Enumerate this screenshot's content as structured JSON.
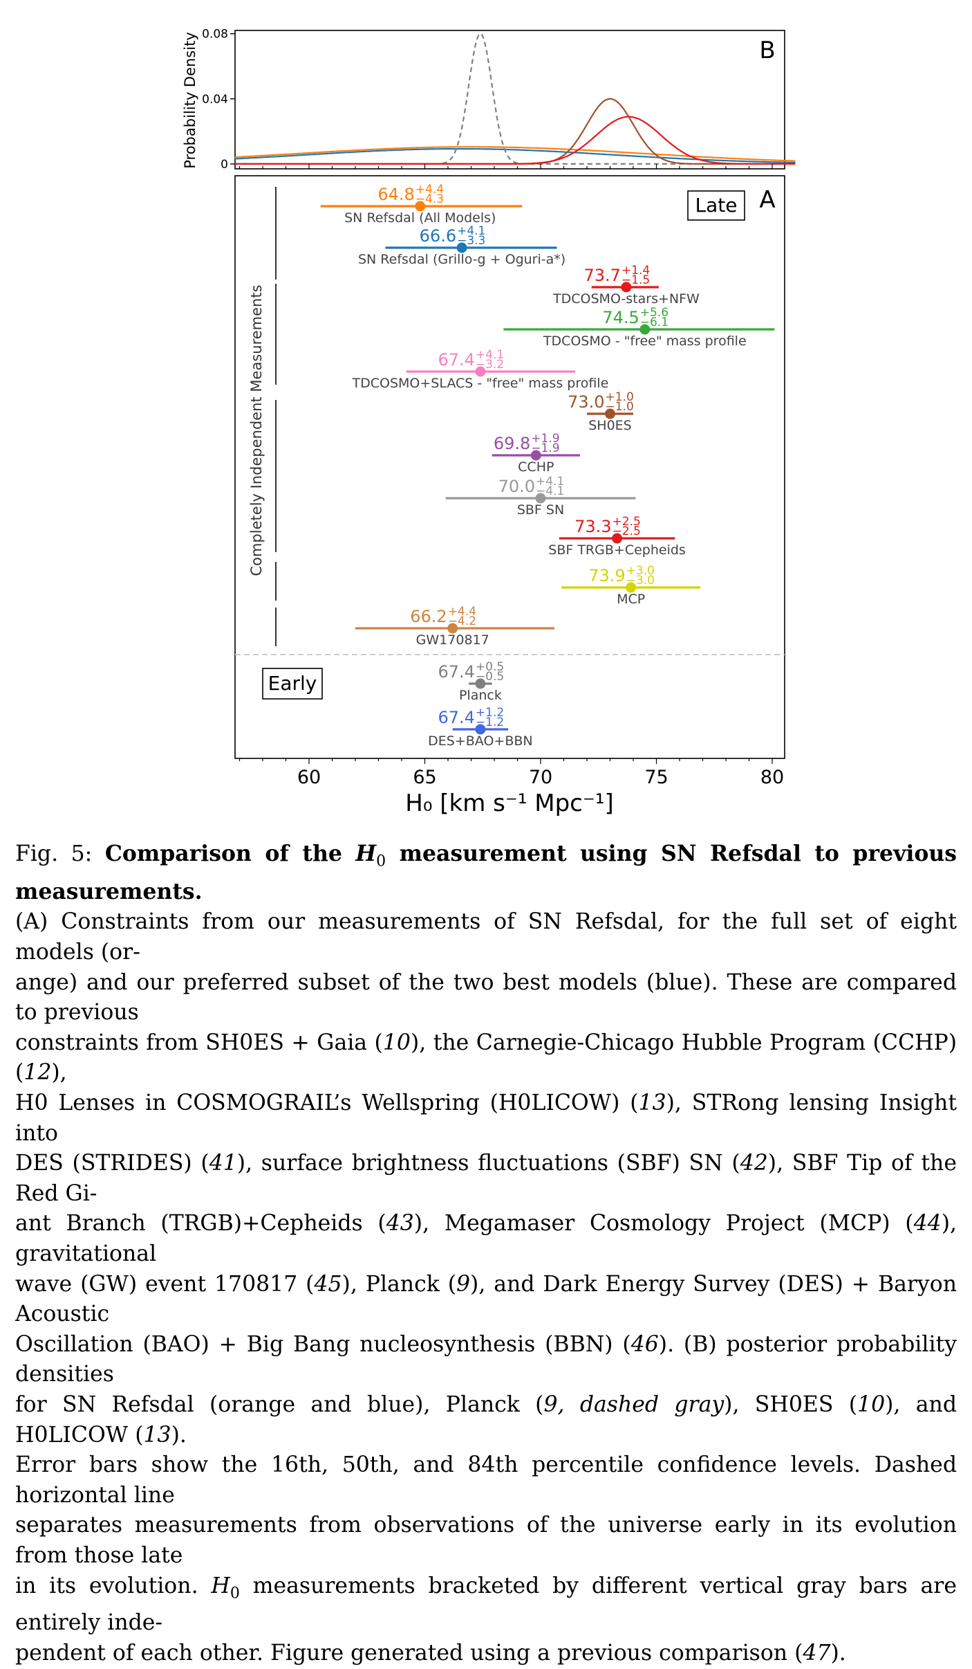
{
  "chart_data": [
    {
      "panel": "B",
      "type": "line",
      "panel_label": "B",
      "ylabel": "Probability Density",
      "yticks": [
        {
          "v": 0,
          "label": "0"
        },
        {
          "v": 0.04,
          "label": "0.04"
        },
        {
          "v": 0.08,
          "label": "0.08"
        }
      ],
      "ylim": [
        -0.003,
        0.082
      ],
      "xlim": [
        56.8,
        81.0
      ],
      "grid": false,
      "series": [
        {
          "color": "#1f77b4",
          "dashed": false,
          "mu": 66.5,
          "sigma": 6.6,
          "amp": 0.0093
        },
        {
          "color": "#ff7f0e",
          "dashed": false,
          "mu": 67.0,
          "sigma": 7.5,
          "amp": 0.0105
        },
        {
          "color": "#808080",
          "dashed": true,
          "mu": 67.4,
          "sigma": 0.5,
          "amp": 0.08
        },
        {
          "color": "#a0522d",
          "dashed": false,
          "mu": 73.0,
          "sigma": 1.0,
          "amp": 0.04
        },
        {
          "color": "#e41a1c",
          "dashed": false,
          "mu": 73.8,
          "sigma": 1.4,
          "amp": 0.029
        }
      ]
    },
    {
      "panel": "A",
      "type": "errorbar",
      "panel_label": "A",
      "xlabel": "H₀ [km s⁻¹ Mpc⁻¹]",
      "ylabel": "Completely Independent Measurements",
      "xlim": [
        56.8,
        81.0
      ],
      "xticks": [
        60,
        65,
        70,
        75,
        80
      ],
      "grid": false,
      "late_label": "Late",
      "early_label": "Early",
      "measurements": [
        {
          "name": "SN Refsdal (All Models)",
          "value": 64.8,
          "val": "64.8",
          "up": "+4.4",
          "dn": "−4.3",
          "lo": 60.5,
          "hi": 69.2,
          "color": "#ff7f0e",
          "label_color": "#444444"
        },
        {
          "name": "SN Refsdal (Grillo-g + Oguri-a*)",
          "value": 66.6,
          "val": "66.6",
          "up": "+4.1",
          "dn": "−3.3",
          "lo": 63.3,
          "hi": 70.7,
          "color": "#1f77b4",
          "label_color": "#444444"
        },
        {
          "name": "TDCOSMO-stars+NFW",
          "value": 73.7,
          "val": "73.7",
          "up": "+1.4",
          "dn": "−1.5",
          "lo": 72.2,
          "hi": 75.1,
          "color": "#e41a1c",
          "label_color": "#444444"
        },
        {
          "name": "TDCOSMO - \"free\" mass profile",
          "value": 74.5,
          "val": "74.5",
          "up": "+5.6",
          "dn": "−6.1",
          "lo": 68.4,
          "hi": 80.1,
          "color": "#3aa83a",
          "label_color": "#444444"
        },
        {
          "name": "TDCOSMO+SLACS - \"free\" mass profile",
          "value": 67.4,
          "val": "67.4",
          "up": "+4.1",
          "dn": "−3.2",
          "lo": 64.2,
          "hi": 71.5,
          "color": "#f781bf",
          "label_color": "#444444"
        },
        {
          "name": "SH0ES",
          "value": 73.0,
          "val": "73.0",
          "up": "+1.0",
          "dn": "−1.0",
          "lo": 72.0,
          "hi": 74.0,
          "color": "#a0522d",
          "label_color": "#444444"
        },
        {
          "name": "CCHP",
          "value": 69.8,
          "val": "69.8",
          "up": "+1.9",
          "dn": "−1.9",
          "lo": 67.9,
          "hi": 71.7,
          "color": "#984ea3",
          "label_color": "#444444"
        },
        {
          "name": "SBF SN",
          "value": 70.0,
          "val": "70.0",
          "up": "+4.1",
          "dn": "−4.1",
          "lo": 65.9,
          "hi": 74.1,
          "color": "#999999",
          "label_color": "#444444"
        },
        {
          "name": "SBF TRGB+Cepheids",
          "value": 73.3,
          "val": "73.3",
          "up": "+2.5",
          "dn": "−2.5",
          "lo": 70.8,
          "hi": 75.8,
          "color": "#e41a1c",
          "label_color": "#444444"
        },
        {
          "name": "MCP",
          "value": 73.9,
          "val": "73.9",
          "up": "+3.0",
          "dn": "−3.0",
          "lo": 70.9,
          "hi": 76.9,
          "color": "#d4d400",
          "label_color": "#444444"
        },
        {
          "name": "GW170817",
          "value": 66.2,
          "val": "66.2",
          "up": "+4.4",
          "dn": "−4.2",
          "lo": 62.0,
          "hi": 70.6,
          "color": "#cd853f",
          "label_color": "#444444"
        },
        {
          "name": "Planck",
          "value": 67.4,
          "val": "67.4",
          "up": "+0.5",
          "dn": "−0.5",
          "lo": 66.9,
          "hi": 67.9,
          "color": "#808080",
          "label_color": "#444444"
        },
        {
          "name": "DES+BAO+BBN",
          "value": 67.4,
          "val": "67.4",
          "up": "+1.2",
          "dn": "−1.2",
          "lo": 66.2,
          "hi": 68.6,
          "color": "#4169e1",
          "label_color": "#444444"
        }
      ]
    }
  ],
  "caption": {
    "fig_label": "Fig. 5:",
    "bold_a": "Comparison of the ",
    "bold_math": "H",
    "bold_sub": "0",
    "bold_b": " measurement using SN Refsdal to previous measurements.",
    "l2": "(A) Constraints from our measurements of SN Refsdal, for the full set of eight models (or-",
    "l3": "ange) and our preferred subset of the two best models (blue). These are compared to previous",
    "l4a": "constraints from SH0ES + Gaia (",
    "l4b": "10",
    "l4c": "), the Carnegie-Chicago Hubble Program (CCHP) (",
    "l4d": "12",
    "l4e": "),",
    "l5a": "H0 Lenses in COSMOGRAIL’s Wellspring (H0LICOW) (",
    "l5b": "13",
    "l5c": "), STRong lensing Insight into",
    "l6a": "DES (STRIDES) (",
    "l6b": "41",
    "l6c": "), surface brightness fluctuations (SBF) SN (",
    "l6d": "42",
    "l6e": "), SBF Tip of the Red Gi-",
    "l7a": "ant Branch (TRGB)+Cepheids (",
    "l7b": "43",
    "l7c": "), Megamaser Cosmology Project (MCP) (",
    "l7d": "44",
    "l7e": "), gravitational",
    "l8a": "wave (GW) event 170817 (",
    "l8b": "45",
    "l8c": "), Planck (",
    "l8d": "9",
    "l8e": "), and Dark Energy Survey (DES) + Baryon Acoustic",
    "l9a": "Oscillation (BAO) + Big Bang nucleosynthesis (BBN) (",
    "l9b": "46",
    "l9c": "). (B) posterior probability densities",
    "l10a": "for SN Refsdal (orange and blue), Planck (",
    "l10b": "9, dashed gray",
    "l10c": "), SH0ES (",
    "l10d": "10",
    "l10e": "), and H0LICOW (",
    "l10f": "13",
    "l10g": ").",
    "l11": "Error bars show the 16th, 50th, and 84th percentile confidence levels. Dashed horizontal line",
    "l12": "separates measurements from observations of the universe early in its evolution from those late",
    "l13a": "in its evolution. ",
    "l13m": "H",
    "l13s": "0",
    "l13b": " measurements bracketed by different vertical gray bars are entirely inde-",
    "l14a": "pendent of each other. Figure generated using a previous comparison (",
    "l14b": "47",
    "l14c": ")."
  }
}
